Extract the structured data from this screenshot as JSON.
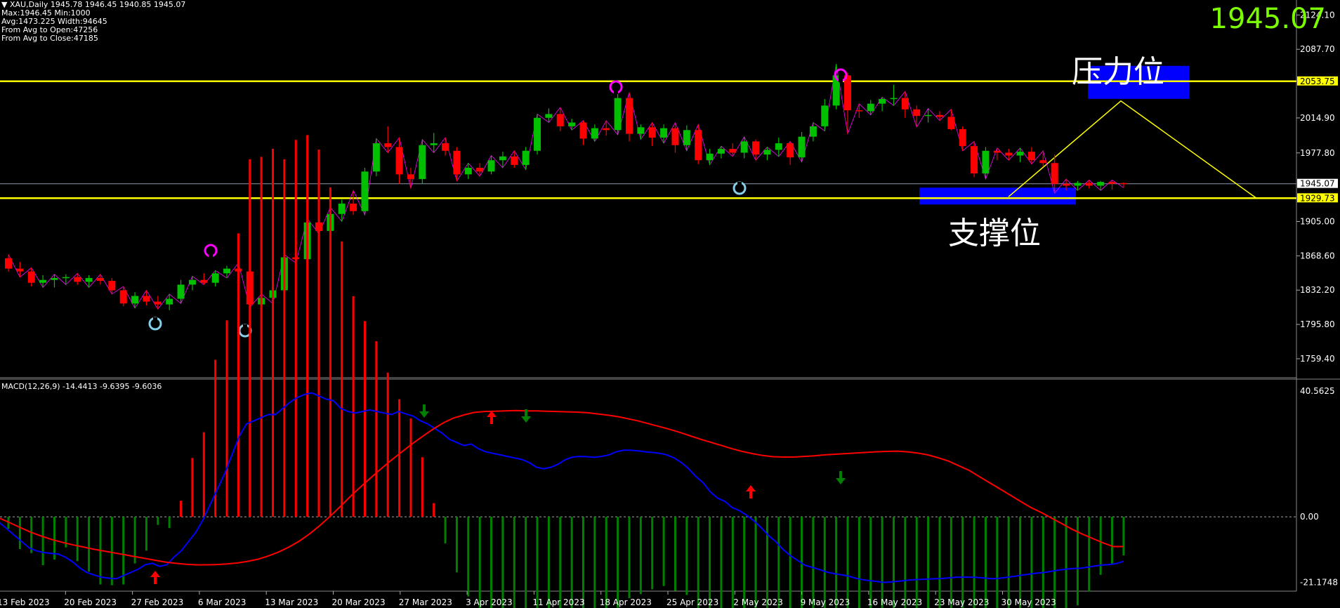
{
  "info": {
    "line1": "▼ XAU,Daily  1945.78 1946.45 1940.85 1945.07",
    "line2": "Max:1946.45 Min:1000",
    "line3": "Avg:1473.225 Width:94645",
    "line4": "From Avg to Open:47256",
    "line5": "From Avg to Close:47185"
  },
  "current_price": "1945.07",
  "annotations": {
    "resistance": "压力位",
    "support": "支撑位"
  },
  "macd_label": "MACD(12,26,9) -14.4413 -9.6395 -9.6036",
  "colors": {
    "bull": "#00C000",
    "bear": "#FF0000",
    "level": "#FFFF00",
    "zone": "#0000FF",
    "macd": "#0000FF",
    "signal": "#FF0000",
    "hist_pos": "#FF0000",
    "hist_neg": "#008000",
    "price_path": "#FF00FF"
  },
  "chart_data": [
    {
      "type": "candlestick",
      "title": "XAU,Daily",
      "ylim": [
        1740,
        2140
      ],
      "y_ticks": [
        "2124.10",
        "2087.70",
        "2053.75",
        "2014.90",
        "1977.80",
        "1945.07",
        "1929.73",
        "1905.00",
        "1868.60",
        "1832.20",
        "1795.80",
        "1759.40"
      ],
      "levels": {
        "resistance": 2053.75,
        "support": 1929.73,
        "current": 1945.07
      },
      "x_labels": [
        "13 Feb 2023",
        "20 Feb 2023",
        "27 Feb 2023",
        "6 Mar 2023",
        "13 Mar 2023",
        "20 Mar 2023",
        "27 Mar 2023",
        "3 Apr 2023",
        "11 Apr 2023",
        "18 Apr 2023",
        "25 Apr 2023",
        "2 May 2023",
        "9 May 2023",
        "16 May 2023",
        "23 May 2023",
        "30 May 2023"
      ],
      "candles": [
        [
          1866,
          1870,
          1852,
          1855
        ],
        [
          1855,
          1862,
          1846,
          1852
        ],
        [
          1852,
          1856,
          1836,
          1840
        ],
        [
          1840,
          1848,
          1835,
          1843
        ],
        [
          1843,
          1849,
          1835,
          1845
        ],
        [
          1845,
          1849,
          1838,
          1846
        ],
        [
          1846,
          1850,
          1838,
          1841
        ],
        [
          1841,
          1848,
          1835,
          1845
        ],
        [
          1845,
          1849,
          1838,
          1842
        ],
        [
          1842,
          1845,
          1828,
          1832
        ],
        [
          1832,
          1836,
          1815,
          1818
        ],
        [
          1818,
          1830,
          1813,
          1826
        ],
        [
          1826,
          1832,
          1816,
          1820
        ],
        [
          1820,
          1826,
          1812,
          1817
        ],
        [
          1817,
          1828,
          1811,
          1823
        ],
        [
          1823,
          1843,
          1818,
          1838
        ],
        [
          1838,
          1847,
          1832,
          1843
        ],
        [
          1843,
          1850,
          1838,
          1840
        ],
        [
          1840,
          1853,
          1836,
          1850
        ],
        [
          1850,
          1858,
          1845,
          1855
        ],
        [
          1855,
          1861,
          1848,
          1852
        ],
        [
          1852,
          1856,
          1814,
          1817
        ],
        [
          1817,
          1828,
          1812,
          1824
        ],
        [
          1824,
          1836,
          1818,
          1832
        ],
        [
          1832,
          1870,
          1828,
          1867
        ],
        [
          1867,
          1873,
          1861,
          1865
        ],
        [
          1865,
          1908,
          1860,
          1904
        ],
        [
          1904,
          1912,
          1892,
          1895
        ],
        [
          1895,
          1920,
          1890,
          1913
        ],
        [
          1913,
          1928,
          1905,
          1924
        ],
        [
          1924,
          1938,
          1912,
          1916
        ],
        [
          1916,
          1962,
          1912,
          1958
        ],
        [
          1958,
          1993,
          1953,
          1988
        ],
        [
          1988,
          2006,
          1978,
          1984
        ],
        [
          1984,
          1994,
          1945,
          1955
        ],
        [
          1955,
          1962,
          1940,
          1950
        ],
        [
          1950,
          1992,
          1945,
          1986
        ],
        [
          1986,
          1999,
          1978,
          1988
        ],
        [
          1988,
          1994,
          1975,
          1980
        ],
        [
          1980,
          1984,
          1948,
          1955
        ],
        [
          1955,
          1967,
          1950,
          1962
        ],
        [
          1962,
          1967,
          1953,
          1958
        ],
        [
          1958,
          1975,
          1955,
          1970
        ],
        [
          1970,
          1979,
          1962,
          1974
        ],
        [
          1974,
          1980,
          1962,
          1965
        ],
        [
          1965,
          1984,
          1960,
          1980
        ],
        [
          1980,
          2019,
          1976,
          2015
        ],
        [
          2015,
          2025,
          2010,
          2019
        ],
        [
          2019,
          2026,
          2001,
          2006
        ],
        [
          2006,
          2014,
          2002,
          2010
        ],
        [
          2010,
          2012,
          1986,
          1993
        ],
        [
          1993,
          2008,
          1990,
          2004
        ],
        [
          2004,
          2012,
          1996,
          2002
        ],
        [
          2002,
          2042,
          1997,
          2036
        ],
        [
          2036,
          2042,
          1990,
          1998
        ],
        [
          1998,
          2008,
          1992,
          2005
        ],
        [
          2005,
          2010,
          1985,
          1994
        ],
        [
          1994,
          2008,
          1988,
          2004
        ],
        [
          2004,
          2010,
          1978,
          1986
        ],
        [
          1986,
          2007,
          1980,
          2002
        ],
        [
          2002,
          2008,
          1966,
          1970
        ],
        [
          1970,
          1982,
          1965,
          1977
        ],
        [
          1977,
          1985,
          1972,
          1982
        ],
        [
          1982,
          1988,
          1974,
          1978
        ],
        [
          1978,
          1995,
          1972,
          1990
        ],
        [
          1990,
          1992,
          1970,
          1976
        ],
        [
          1976,
          1984,
          1970,
          1981
        ],
        [
          1981,
          1994,
          1974,
          1988
        ],
        [
          1988,
          1990,
          1965,
          1973
        ],
        [
          1973,
          2000,
          1968,
          1995
        ],
        [
          1995,
          2010,
          1990,
          2006
        ],
        [
          2006,
          2035,
          2001,
          2028
        ],
        [
          2028,
          2072,
          2024,
          2060
        ],
        [
          2060,
          2063,
          1998,
          2023
        ],
        [
          2023,
          2030,
          2015,
          2022
        ],
        [
          2022,
          2034,
          2018,
          2030
        ],
        [
          2030,
          2037,
          2022,
          2035
        ],
        [
          2035,
          2050,
          2028,
          2036
        ],
        [
          2036,
          2043,
          2015,
          2024
        ],
        [
          2024,
          2028,
          2005,
          2017
        ],
        [
          2017,
          2025,
          2010,
          2018
        ],
        [
          2018,
          2022,
          2012,
          2016
        ],
        [
          2016,
          2024,
          2002,
          2003
        ],
        [
          2003,
          2006,
          1980,
          1985
        ],
        [
          1985,
          1990,
          1952,
          1956
        ],
        [
          1956,
          1984,
          1950,
          1980
        ],
        [
          1980,
          1983,
          1970,
          1978
        ],
        [
          1978,
          1982,
          1970,
          1975
        ],
        [
          1975,
          1983,
          1968,
          1979
        ],
        [
          1979,
          1984,
          1966,
          1970
        ],
        [
          1970,
          1980,
          1963,
          1967
        ],
        [
          1967,
          1976,
          1935,
          1945
        ],
        [
          1945,
          1950,
          1938,
          1943
        ],
        [
          1943,
          1948,
          1938,
          1946
        ],
        [
          1946,
          1949,
          1940,
          1943
        ],
        [
          1943,
          1948,
          1938,
          1947
        ],
        [
          1947,
          1949,
          1939,
          1945
        ],
        [
          1945.78,
          1946.45,
          1940.85,
          1945.07
        ]
      ]
    },
    {
      "type": "line",
      "title": "MACD(12,26,9) -14.4413 -9.6395 -9.6036",
      "ylim": [
        -24,
        44
      ],
      "y_ticks": [
        "40.5625",
        "0.00",
        "-21.1748"
      ],
      "series": [
        {
          "name": "MACD",
          "values": [
            -2,
            -4,
            -6,
            -8,
            -10,
            -11,
            -11.5,
            -11.8,
            -12,
            -13,
            -14.5,
            -16.5,
            -18,
            -18.8,
            -19.5,
            -19.8,
            -20,
            -19,
            -18,
            -17,
            -15.5,
            -15,
            -16,
            -15.5,
            -13,
            -11,
            -8,
            -5,
            -1,
            4,
            9,
            14,
            20,
            26,
            30,
            31,
            32,
            33,
            33,
            35,
            37,
            38.5,
            39.5,
            40,
            39,
            38,
            37.5,
            35,
            34,
            33.5,
            34,
            34.5,
            34,
            33.5,
            33,
            34,
            33.2,
            32.5,
            31,
            30,
            28.5,
            27,
            25,
            24,
            23,
            23.5,
            22,
            21,
            20.5,
            20,
            19.5,
            19,
            18.5,
            17.5,
            16,
            15.5,
            16,
            17,
            18.5,
            19.3,
            19.5,
            19.4,
            19.2,
            19.5,
            20,
            21,
            21.5,
            21.5,
            21.3,
            21,
            20.8,
            20.5,
            20,
            19,
            17.5,
            15.5,
            13,
            11,
            8,
            6,
            5,
            3,
            2,
            0.5,
            -1.3,
            -3.5,
            -6,
            -8,
            -10.5,
            -12.5,
            -14,
            -15.6,
            -16.3,
            -17,
            -17.8,
            -18.3,
            -18.7,
            -19.1,
            -19.8,
            -20.3,
            -20.6,
            -20.9,
            -21.2,
            -21,
            -20.8,
            -20.5,
            -20.3,
            -20.2,
            -20.1,
            -20,
            -19.9,
            -19.7,
            -19.5,
            -19.5,
            -19.5,
            -19.6,
            -19.8,
            -20,
            -19.8,
            -19.5,
            -19.2,
            -18.8,
            -18.5,
            -18.2,
            -18,
            -17.6,
            -17.2,
            -16.9,
            -16.7,
            -16.6,
            -16.3,
            -15.9,
            -15.6,
            -15.4,
            -15.1,
            -14.4
          ]
        },
        {
          "name": "Signal",
          "values": [
            -0.5,
            -2,
            -3.5,
            -5,
            -6.2,
            -7.3,
            -8.2,
            -9,
            -9.7,
            -10.4,
            -11,
            -11.6,
            -12.2,
            -12.8,
            -13.4,
            -14,
            -14.6,
            -15,
            -15.3,
            -15.5,
            -15.5,
            -15.4,
            -15.2,
            -14.9,
            -14.4,
            -13.7,
            -12.7,
            -11.4,
            -9.8,
            -7.9,
            -5.6,
            -2.9,
            0.1,
            3.3,
            6.6,
            9.7,
            12.7,
            15.6,
            18.4,
            21,
            23.6,
            26,
            28.3,
            30.3,
            31.9,
            32.9,
            33.7,
            34,
            34.1,
            34.2,
            34.3,
            34.2,
            34.2,
            34.1,
            34,
            33.9,
            33.8,
            33.6,
            33.2,
            32.8,
            32.3,
            31.6,
            30.9,
            30,
            29.1,
            28.2,
            27.2,
            26.1,
            25,
            24,
            23,
            22,
            21.1,
            20.4,
            19.8,
            19.4,
            19.3,
            19.3,
            19.5,
            19.7,
            20,
            20.2,
            20.4,
            20.6,
            20.8,
            21,
            21.1,
            21.2,
            21,
            20.6,
            20,
            19.1,
            18,
            16.5,
            15,
            13,
            11,
            9,
            7,
            5,
            3,
            1.4,
            -0.4,
            -2.2,
            -4,
            -5.6,
            -7,
            -8.4,
            -9.6,
            -9.6036
          ]
        }
      ]
    }
  ]
}
